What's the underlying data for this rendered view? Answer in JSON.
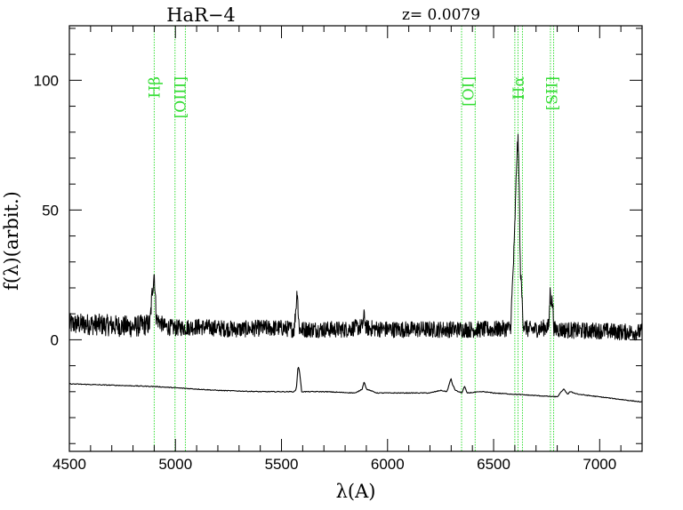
{
  "chart_data": {
    "type": "line",
    "title": "HaR−4",
    "redshift_label": "z=  0.0079",
    "xlabel": "λ(A)",
    "ylabel": "f(λ)(arbit.)",
    "xlim": [
      4500,
      7200
    ],
    "ylim": [
      -43,
      121
    ],
    "x_ticks": [
      4500,
      5000,
      5500,
      6000,
      6500,
      7000
    ],
    "y_ticks": [
      0,
      50,
      100
    ],
    "grid": false,
    "line_color": "#000000",
    "marker_color": "#33dd33",
    "line_markers": [
      {
        "label": "Hβ",
        "positions": [
          4900
        ]
      },
      {
        "label": "[OIII]",
        "positions": [
          4998,
          5047
        ]
      },
      {
        "label": "[OI]",
        "positions": [
          6349,
          6413
        ]
      },
      {
        "label": "Hα",
        "positions": [
          6600,
          6615,
          6636
        ]
      },
      {
        "label": "[SII]",
        "positions": [
          6768,
          6783
        ]
      }
    ],
    "series": [
      {
        "x": [
          4500,
          4600,
          4700,
          4800,
          4880,
          4892,
          4900,
          4910,
          4950,
          5000,
          5100,
          5200,
          5300,
          5400,
          5500,
          5560,
          5575,
          5580,
          5585,
          5600,
          5700,
          5800,
          5880,
          5890,
          5900,
          6000,
          6100,
          6200,
          6300,
          6400,
          6500,
          6580,
          6598,
          6610,
          6615,
          6620,
          6625,
          6640,
          6660,
          6700,
          6760,
          6767,
          6770,
          6778,
          6785,
          6800,
          6900,
          7000,
          7100,
          7200
        ],
        "y": [
          6,
          6,
          5.5,
          5,
          6,
          20,
          26,
          8,
          5,
          4.5,
          5,
          4.5,
          4,
          4.5,
          4.5,
          4,
          20,
          8,
          4,
          4,
          4,
          4,
          5,
          9,
          4.5,
          4,
          4,
          4,
          4,
          4,
          4,
          4.5,
          38,
          72,
          76,
          65,
          30,
          6,
          4,
          4,
          5,
          19,
          16,
          14,
          4,
          4,
          3.5,
          3.5,
          3,
          3
        ]
      },
      {
        "x": [
          4500,
          4700,
          4900,
          5000,
          5100,
          5200,
          5400,
          5560,
          5570,
          5578,
          5585,
          5595,
          5700,
          5850,
          5880,
          5890,
          5900,
          5950,
          6100,
          6200,
          6250,
          6280,
          6295,
          6300,
          6305,
          6320,
          6350,
          6363,
          6375,
          6450,
          6500,
          6600,
          6700,
          6800,
          6820,
          6830,
          6850,
          6860,
          6900,
          6950,
          7000,
          7100,
          7200
        ],
        "y": [
          -17,
          -17.5,
          -18,
          -18.5,
          -19,
          -19.5,
          -20,
          -20,
          -19,
          -10,
          -12,
          -20,
          -20,
          -20.5,
          -19,
          -16,
          -19,
          -20.5,
          -20.5,
          -20.5,
          -19.5,
          -20,
          -16,
          -15,
          -17,
          -19.5,
          -20.5,
          -18,
          -20.5,
          -20,
          -20.5,
          -21,
          -21.5,
          -22,
          -20,
          -19,
          -21,
          -20,
          -21,
          -21.5,
          -22,
          -23,
          -24
        ]
      }
    ]
  }
}
